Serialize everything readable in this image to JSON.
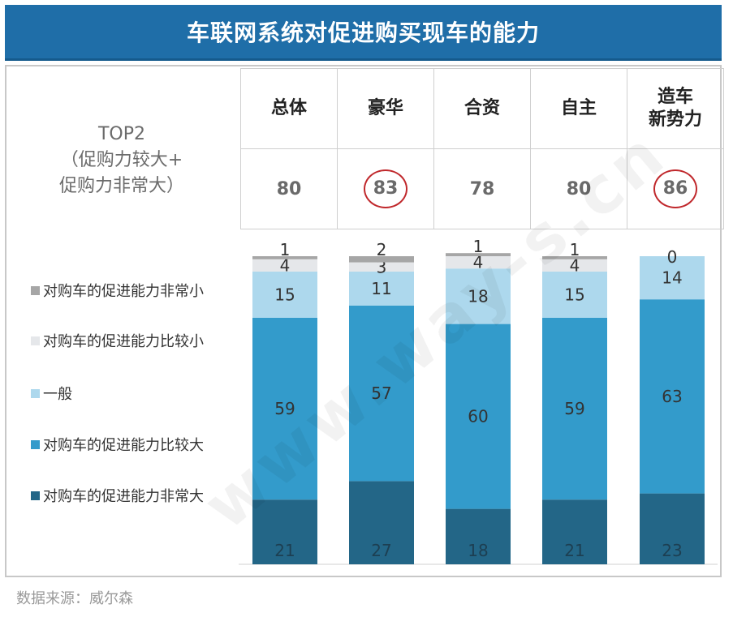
{
  "title": "车联网系统对促进购买现车的能力",
  "top2": {
    "line1": "TOP2",
    "line2": "（促购力较大+",
    "line3": "促购力非常大）"
  },
  "source": "数据来源：威尔森",
  "watermark": "www.way-s.cn",
  "columns": [
    {
      "label": "总体",
      "label2": "",
      "top2": "80",
      "highlight": false
    },
    {
      "label": "豪华",
      "label2": "",
      "top2": "83",
      "highlight": true
    },
    {
      "label": "合资",
      "label2": "",
      "top2": "78",
      "highlight": false
    },
    {
      "label": "自主",
      "label2": "",
      "top2": "80",
      "highlight": false
    },
    {
      "label": "造车",
      "label2": "新势力",
      "top2": "86",
      "highlight": true
    }
  ],
  "colors": {
    "title_bg": "#1f6ea8",
    "ring": "#c0282c",
    "text": "#333333"
  },
  "chart_data": {
    "type": "bar",
    "stacked": true,
    "categories": [
      "总体",
      "豪华",
      "合资",
      "自主",
      "造车新势力"
    ],
    "series": [
      {
        "name": "对购车的促进能力非常大",
        "color": "#236687",
        "values": [
          21,
          27,
          18,
          21,
          23
        ]
      },
      {
        "name": "对购车的促进能力比较大",
        "color": "#339bcb",
        "values": [
          59,
          57,
          60,
          59,
          63
        ]
      },
      {
        "name": "一般",
        "color": "#add8ed",
        "values": [
          15,
          11,
          18,
          15,
          14
        ]
      },
      {
        "name": "对购车的促进能力比较小",
        "color": "#e5e7ea",
        "values": [
          4,
          3,
          4,
          4,
          0
        ]
      },
      {
        "name": "对购车的促进能力非常小",
        "color": "#a6a6a6",
        "values": [
          1,
          2,
          1,
          1,
          0
        ]
      }
    ],
    "legend_order": [
      "对购车的促进能力非常小",
      "对购车的促进能力比较小",
      "一般",
      "对购车的促进能力比较大",
      "对购车的促进能力非常大"
    ],
    "ylim": [
      0,
      100
    ]
  }
}
